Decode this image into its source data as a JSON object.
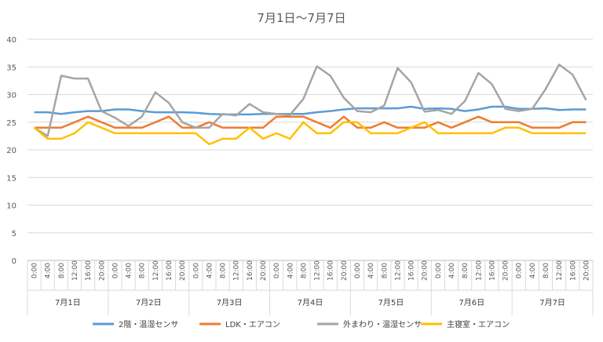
{
  "chart_data": {
    "type": "line",
    "title": "7月1日～7月7日",
    "ylim": [
      0,
      40
    ],
    "yticks": [
      0,
      5,
      10,
      15,
      20,
      25,
      30,
      35,
      40
    ],
    "grid": true,
    "legend_position": "bottom",
    "time_labels": [
      "0:00",
      "4:00",
      "8:00",
      "12:00",
      "16:00",
      "20:00"
    ],
    "days": [
      "7月1日",
      "7月2日",
      "7月3日",
      "7月4日",
      "7月5日",
      "7月6日",
      "7月7日"
    ],
    "series": [
      {
        "name": "2階・温湿センサ",
        "color": "#5B9BD5",
        "values": [
          26.8,
          26.8,
          26.5,
          26.8,
          27.0,
          27.0,
          27.3,
          27.3,
          27.0,
          26.8,
          26.8,
          26.8,
          26.7,
          26.5,
          26.4,
          26.4,
          26.4,
          26.5,
          26.5,
          26.5,
          26.5,
          26.8,
          27.0,
          27.3,
          27.5,
          27.5,
          27.5,
          27.5,
          27.8,
          27.4,
          27.5,
          27.4,
          27.0,
          27.3,
          27.8,
          27.8,
          27.4,
          27.4,
          27.5,
          27.2,
          27.3,
          27.3
        ]
      },
      {
        "name": "LDK・エアコン",
        "color": "#ED7D31",
        "values": [
          24,
          24,
          24,
          25,
          26,
          25,
          24,
          24,
          24,
          25,
          26,
          24,
          24,
          25,
          24,
          24,
          24,
          24,
          26,
          26,
          26,
          25,
          24,
          26,
          24,
          24,
          25,
          24,
          24,
          24,
          25,
          24,
          25,
          26,
          25,
          25,
          25,
          24,
          24,
          24,
          25,
          25
        ]
      },
      {
        "name": "外まわり・温湿センサ",
        "color": "#A5A5A5",
        "values": [
          24,
          22.5,
          33.4,
          32.9,
          32.9,
          27.0,
          25.8,
          24.3,
          26.0,
          30.4,
          28.5,
          25.0,
          24.0,
          24.0,
          26.5,
          26.2,
          28.3,
          26.8,
          26.5,
          26.3,
          29.2,
          35.1,
          33.4,
          29.4,
          27.0,
          26.8,
          28.0,
          34.8,
          32.2,
          26.9,
          27.2,
          26.5,
          28.8,
          33.9,
          31.9,
          27.4,
          27.0,
          27.4,
          31.0,
          35.4,
          33.6,
          29.0
        ]
      },
      {
        "name": "主寝室・エアコン",
        "color": "#FFC000",
        "values": [
          24,
          22,
          22,
          23,
          25,
          24,
          23,
          23,
          23,
          23,
          23,
          23,
          23,
          21,
          22,
          22,
          24,
          22,
          23,
          22,
          25,
          23,
          23,
          25,
          25,
          23,
          23,
          23,
          24,
          25,
          23,
          23,
          23,
          23,
          23,
          24,
          24,
          23,
          23,
          23,
          23,
          23
        ]
      }
    ]
  }
}
